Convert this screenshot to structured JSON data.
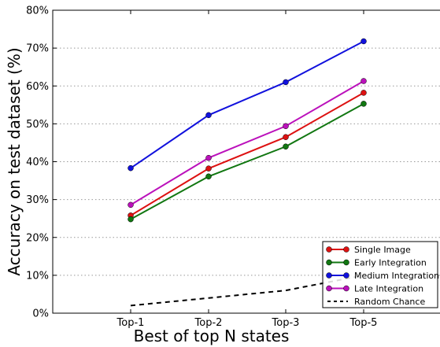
{
  "chart_data": {
    "type": "line",
    "xlabel": "Best of top N states",
    "ylabel": "Accuracy on test dataset (%)",
    "categories": [
      "Top-1",
      "Top-2",
      "Top-3",
      "Top-5"
    ],
    "ylim": [
      0,
      80
    ],
    "yticks": [
      "0%",
      "10%",
      "20%",
      "30%",
      "40%",
      "50%",
      "60%",
      "70%",
      "80%"
    ],
    "grid": "horizontal dotted",
    "legend_position": "bottom-right",
    "series": [
      {
        "name": "Single Image",
        "color": "#dd1111",
        "style": "solid",
        "values": [
          25.8,
          38.2,
          46.5,
          58.2
        ]
      },
      {
        "name": "Early Integration",
        "color": "#117711",
        "style": "solid",
        "values": [
          24.8,
          36.1,
          44.0,
          55.3
        ]
      },
      {
        "name": "Medium Integration",
        "color": "#1111dd",
        "style": "solid",
        "values": [
          38.3,
          52.3,
          61.0,
          71.8
        ]
      },
      {
        "name": "Late Integration",
        "color": "#bb11bb",
        "style": "solid",
        "values": [
          28.6,
          41.0,
          49.4,
          61.3
        ]
      },
      {
        "name": "Random Chance",
        "color": "#000000",
        "style": "dashed",
        "values": [
          2.0,
          4.0,
          6.0,
          10.0
        ]
      }
    ]
  }
}
